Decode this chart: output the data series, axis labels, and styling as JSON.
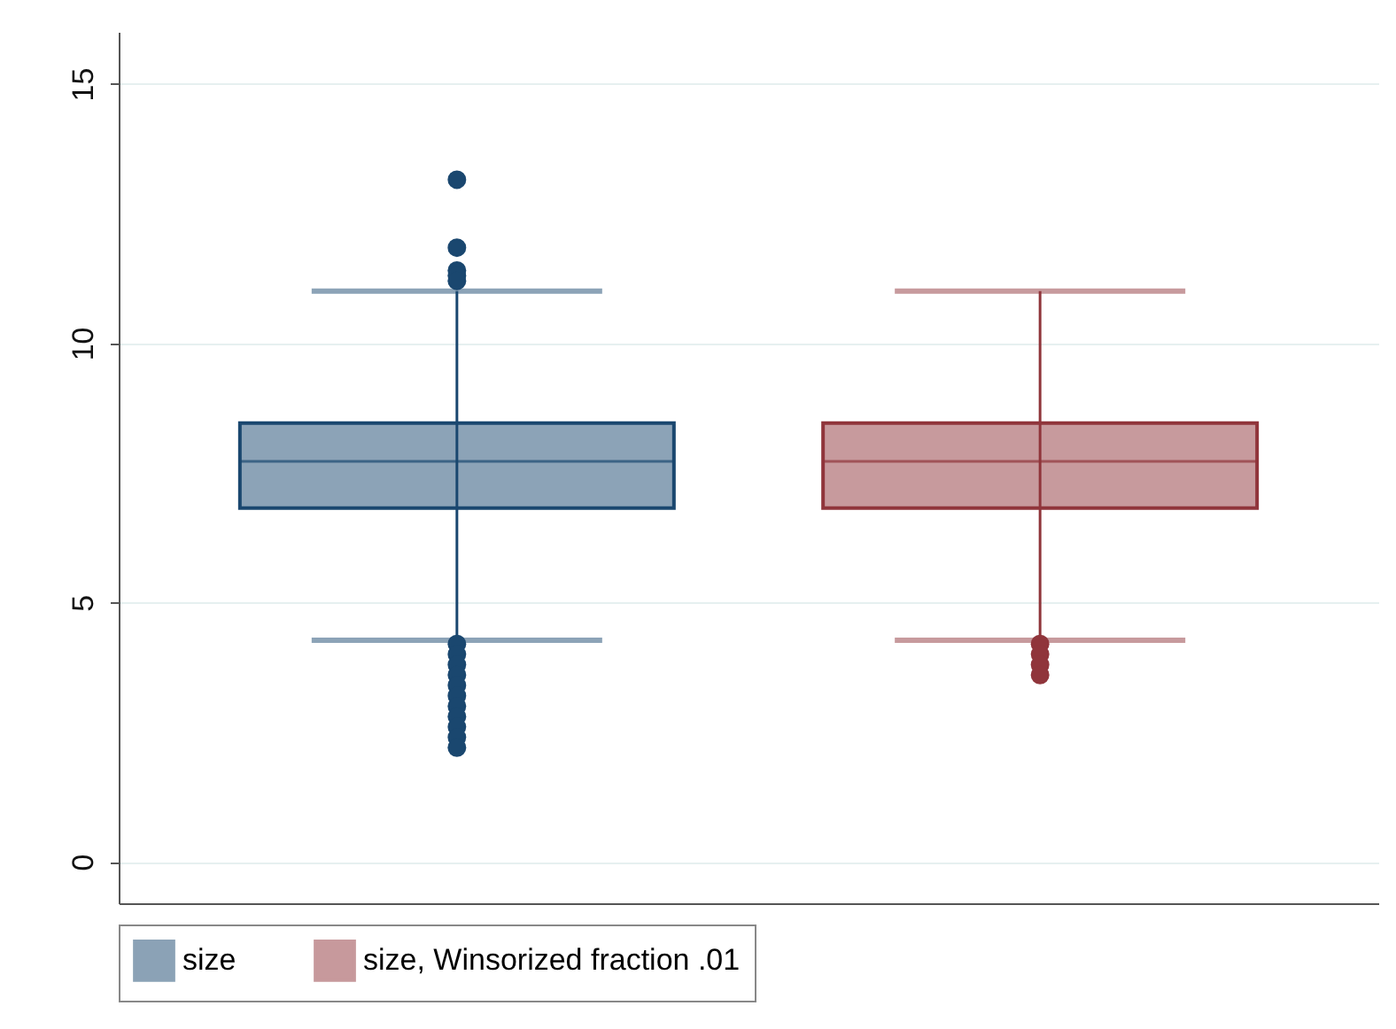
{
  "chart_data": {
    "type": "box",
    "categories": [
      null
    ],
    "ylim": [
      -0.8,
      16
    ],
    "yticks": [
      0,
      5,
      10,
      15
    ],
    "grid": "y",
    "legend": "bottom",
    "marker": "circle",
    "series": [
      {
        "name": "size",
        "color": "#1a476f",
        "boxes": [
          {
            "low": 4.27,
            "q1": 6.82,
            "median": 7.72,
            "q3": 8.46,
            "high": 11.0,
            "outliers": [
              13.15,
              11.84,
              11.4,
              11.3,
              11.2,
              4.2,
              4.0,
              3.8,
              3.6,
              3.4,
              3.2,
              3.0,
              2.8,
              2.6,
              2.4,
              2.2
            ]
          }
        ]
      },
      {
        "name": "size, Winsorized fraction .01",
        "color": "#90353b",
        "boxes": [
          {
            "low": 4.27,
            "q1": 6.82,
            "median": 7.72,
            "q3": 8.46,
            "high": 11.0,
            "outliers": [
              4.2,
              4.0,
              3.8,
              3.6
            ]
          }
        ]
      }
    ]
  }
}
